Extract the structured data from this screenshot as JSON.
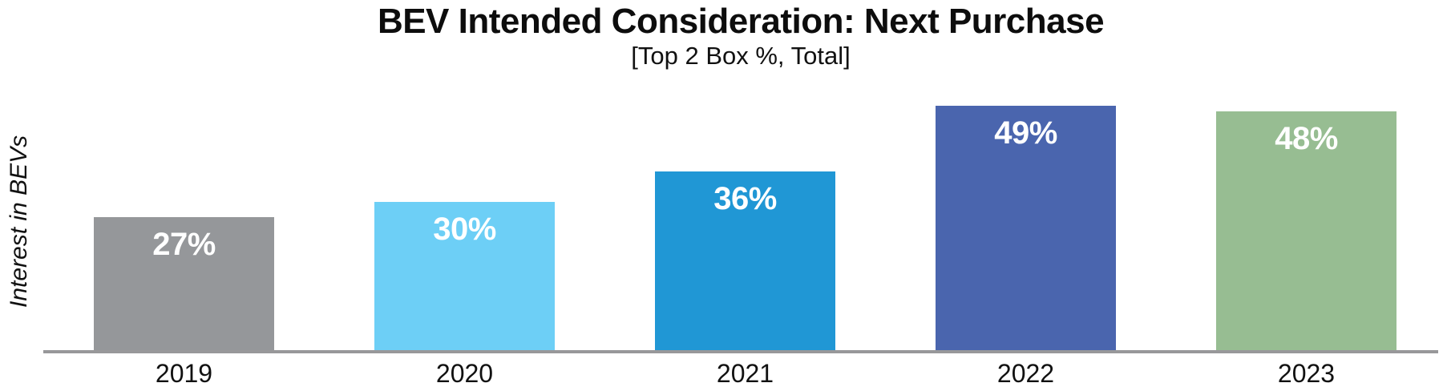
{
  "chart_data": {
    "type": "bar",
    "title": "BEV Intended Consideration: Next Purchase",
    "subtitle": "[Top 2 Box %, Total]",
    "ylabel": "Interest in BEVs",
    "xlabel": "",
    "categories": [
      "2019",
      "2020",
      "2021",
      "2022",
      "2023"
    ],
    "values": [
      27,
      30,
      36,
      49,
      48
    ],
    "value_labels": [
      "27%",
      "30%",
      "36%",
      "49%",
      "48%"
    ],
    "bar_colors": [
      "#95979a",
      "#6dcff6",
      "#2097d5",
      "#4a65ae",
      "#97bd92"
    ],
    "value_label_color": "#ffffff",
    "axis_line_color": "#98989a",
    "ylim": [
      0,
      55
    ],
    "grid": false,
    "legend": false
  }
}
